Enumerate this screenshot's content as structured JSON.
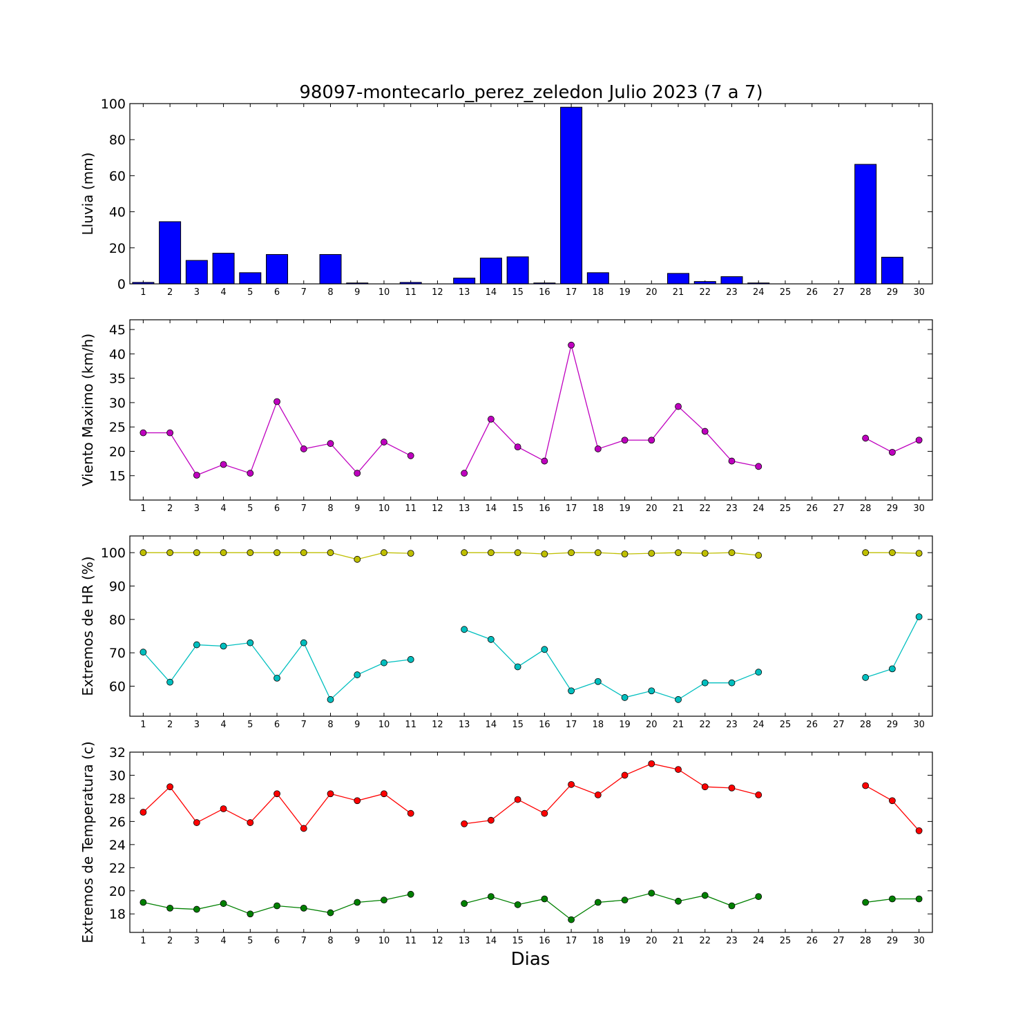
{
  "figure": {
    "title": "98097-montecarlo_perez_zeledon Julio 2023  (7 a 7)",
    "xlabel": "Dias"
  },
  "chart_data": [
    {
      "type": "bar",
      "ylabel": "Lluvia (mm)",
      "ylim": [
        0,
        100
      ],
      "yticks": [
        0,
        20,
        40,
        60,
        80,
        100
      ],
      "categories": [
        "1",
        "2",
        "3",
        "4",
        "5",
        "6",
        "7",
        "8",
        "9",
        "10",
        "11",
        "12",
        "13",
        "14",
        "15",
        "16",
        "17",
        "18",
        "19",
        "20",
        "21",
        "22",
        "23",
        "24",
        "25",
        "26",
        "27",
        "28",
        "29",
        "30"
      ],
      "values": [
        0.8,
        34.5,
        13,
        17,
        6.2,
        16.3,
        0,
        16.3,
        0.5,
        0,
        0.8,
        0,
        3.2,
        14.3,
        15,
        0.5,
        98,
        6.2,
        0,
        0,
        5.8,
        1.3,
        4,
        0.5,
        0,
        0,
        0,
        66.3,
        14.8,
        0
      ],
      "color": "#0000ff"
    },
    {
      "type": "line",
      "ylabel": "Viento Maximo (km/h)",
      "ylim": [
        10,
        47
      ],
      "yticks": [
        15,
        20,
        25,
        30,
        35,
        40,
        45
      ],
      "x": [
        1,
        2,
        3,
        4,
        5,
        6,
        7,
        8,
        9,
        10,
        11,
        12,
        13,
        14,
        15,
        16,
        17,
        18,
        19,
        20,
        21,
        22,
        23,
        24,
        25,
        26,
        27,
        28,
        29,
        30
      ],
      "series": [
        {
          "color": "#bf00bf",
          "values": [
            23.8,
            23.8,
            15.1,
            17.3,
            15.5,
            30.2,
            20.5,
            21.6,
            15.5,
            21.9,
            19.1,
            null,
            15.5,
            26.6,
            20.9,
            18,
            41.8,
            20.5,
            22.3,
            22.3,
            29.2,
            24.1,
            18,
            16.9,
            null,
            null,
            null,
            22.7,
            19.8,
            22.3
          ]
        }
      ]
    },
    {
      "type": "line",
      "ylabel": "Extremos de HR (%)",
      "ylim": [
        51,
        105
      ],
      "yticks": [
        60,
        70,
        80,
        90,
        100
      ],
      "x": [
        1,
        2,
        3,
        4,
        5,
        6,
        7,
        8,
        9,
        10,
        11,
        12,
        13,
        14,
        15,
        16,
        17,
        18,
        19,
        20,
        21,
        22,
        23,
        24,
        25,
        26,
        27,
        28,
        29,
        30
      ],
      "series": [
        {
          "color": "#bfbf00",
          "values": [
            100,
            100,
            100,
            100,
            100,
            100,
            100,
            100,
            98,
            100,
            99.8,
            null,
            100,
            100,
            100,
            99.6,
            100,
            100,
            99.6,
            99.8,
            100,
            99.8,
            100,
            99.2,
            null,
            null,
            null,
            100,
            100,
            99.8
          ]
        },
        {
          "color": "#00bfbf",
          "values": [
            70.2,
            61.2,
            72.4,
            72,
            73,
            62.4,
            73,
            56,
            63.4,
            67,
            68,
            null,
            77,
            74,
            65.8,
            71,
            58.6,
            61.4,
            56.6,
            58.6,
            56,
            61,
            61,
            64.2,
            null,
            null,
            null,
            62.6,
            65.2,
            80.8
          ]
        }
      ]
    },
    {
      "type": "line",
      "ylabel": "Extremos de Temperatura (c)",
      "ylim": [
        16.4,
        32
      ],
      "yticks": [
        18,
        20,
        22,
        24,
        26,
        28,
        30,
        32
      ],
      "x": [
        1,
        2,
        3,
        4,
        5,
        6,
        7,
        8,
        9,
        10,
        11,
        12,
        13,
        14,
        15,
        16,
        17,
        18,
        19,
        20,
        21,
        22,
        23,
        24,
        25,
        26,
        27,
        28,
        29,
        30
      ],
      "series": [
        {
          "color": "#ff0000",
          "values": [
            26.8,
            29,
            25.9,
            27.1,
            25.9,
            28.4,
            25.4,
            28.4,
            27.8,
            28.4,
            26.7,
            null,
            25.8,
            26.1,
            27.9,
            26.7,
            29.2,
            28.3,
            30,
            31,
            30.5,
            29,
            28.9,
            28.3,
            null,
            null,
            null,
            29.1,
            27.8,
            25.2
          ]
        },
        {
          "color": "#008000",
          "values": [
            19,
            18.5,
            18.4,
            18.9,
            18,
            18.7,
            18.5,
            18.1,
            19,
            19.2,
            19.7,
            null,
            18.9,
            19.5,
            18.8,
            19.3,
            17.5,
            19,
            19.2,
            19.8,
            19.1,
            19.6,
            18.7,
            19.5,
            null,
            null,
            null,
            19,
            19.3,
            19.3
          ]
        }
      ]
    }
  ]
}
